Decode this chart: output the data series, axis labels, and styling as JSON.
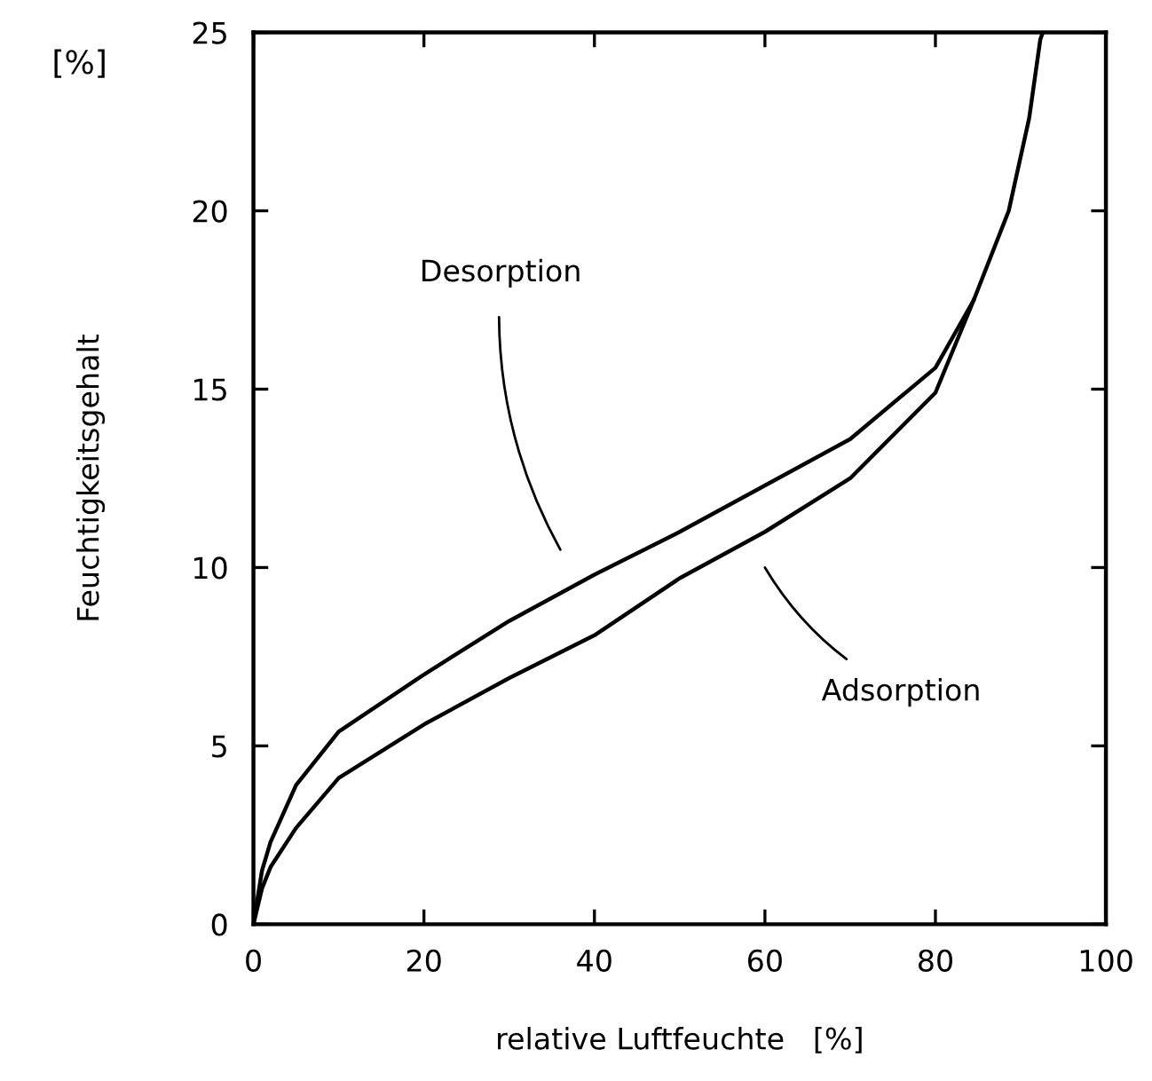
{
  "chart_data": {
    "type": "line",
    "xlabel": "relative Luftfeuchte   [%]",
    "ylabel": "Feuchtigkeitsgehalt",
    "xlim": [
      0,
      100
    ],
    "ylim": [
      0,
      25
    ],
    "xticks": [
      0,
      20,
      40,
      60,
      80,
      100
    ],
    "yticks": [
      0,
      5,
      10,
      15,
      20,
      25
    ],
    "grid": false,
    "legend": false,
    "marker": "none",
    "line_style": "solid",
    "series": [
      {
        "color": "#000000",
        "x": [
          0,
          1,
          2,
          5,
          10,
          20,
          30,
          40,
          50,
          60,
          70,
          80,
          84.5,
          88.6,
          91,
          92.3,
          92.6
        ],
        "values": [
          0,
          1.5,
          2.3,
          3.9,
          5.4,
          7.0,
          8.5,
          9.8,
          11.0,
          12.3,
          13.6,
          15.6,
          17.5,
          20.0,
          22.6,
          24.8,
          25
        ]
      },
      {
        "color": "#000000",
        "x": [
          0,
          1,
          2,
          5,
          10,
          20,
          30,
          40,
          50,
          60,
          70,
          80,
          84.5
        ],
        "values": [
          0,
          1.0,
          1.6,
          2.7,
          4.1,
          5.6,
          6.9,
          8.1,
          9.7,
          11.0,
          12.5,
          14.9,
          17.5
        ]
      }
    ],
    "annotations": [
      "Desorption",
      "Adsorption",
      "[%]"
    ]
  }
}
